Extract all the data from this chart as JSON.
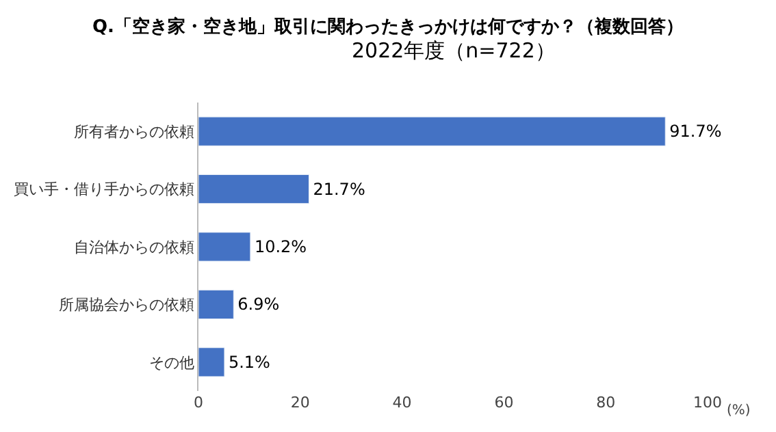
{
  "chart_data": {
    "type": "bar",
    "orientation": "horizontal",
    "title": "Q.「空き家・空き地」取引に関わったきっかけは何ですか？（複数回答）",
    "subtitle": "2022年度（n=722）",
    "xlabel": "(%)",
    "categories": [
      "所有者からの依頼",
      "買い手・借り手からの依頼",
      "自治体からの依頼",
      "所属協会からの依頼",
      "その他"
    ],
    "values": [
      91.7,
      21.7,
      10.2,
      6.9,
      5.1
    ],
    "value_labels": [
      "91.7%",
      "21.7%",
      "10.2%",
      "6.9%",
      "5.1%"
    ],
    "color": "#4472c4",
    "xlim": [
      0,
      100
    ],
    "xticks": [
      0,
      20,
      40,
      60,
      80,
      100
    ]
  }
}
